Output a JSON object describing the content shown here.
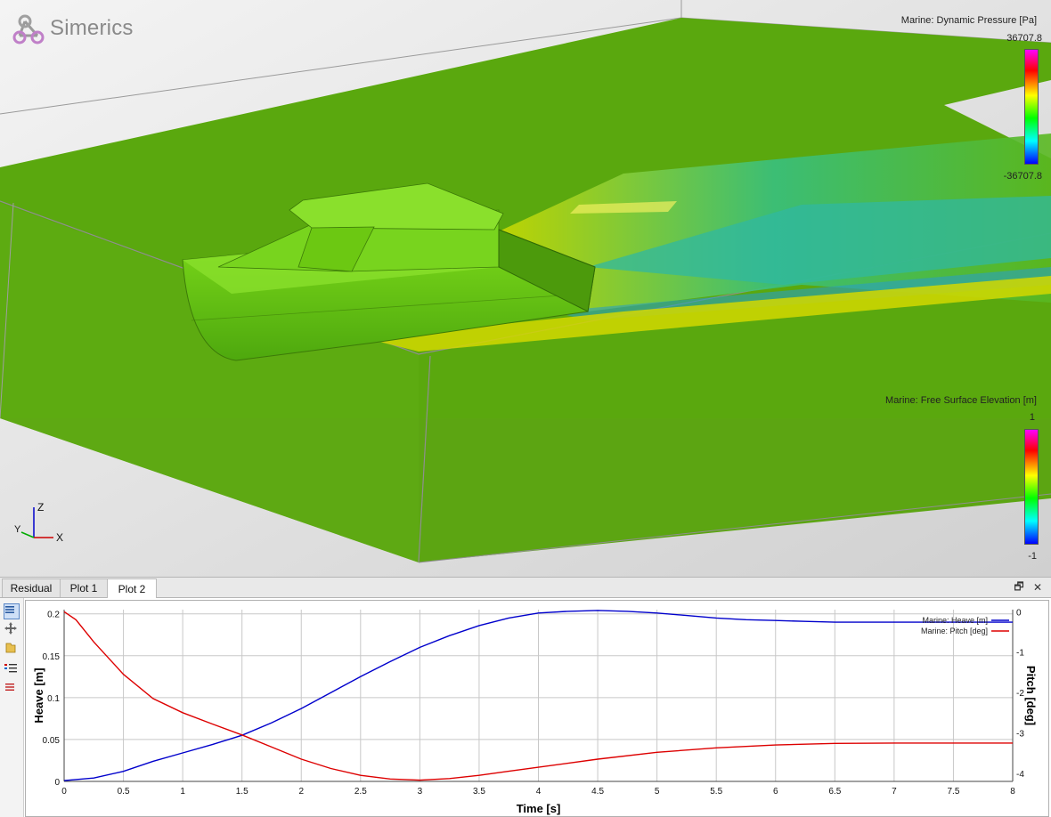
{
  "app": {
    "logo_text": "Simerics"
  },
  "viewport": {
    "legend_top": {
      "title": "Marine: Dynamic Pressure [Pa]",
      "max": "36707.8",
      "min": "-36707.8"
    },
    "legend_bottom": {
      "title": "Marine: Free Surface Elevation [m]",
      "max": "1",
      "min": "-1"
    },
    "triad": {
      "z": "Z",
      "y": "Y",
      "x": "X"
    }
  },
  "tabs": [
    {
      "label": "Residual",
      "active": false
    },
    {
      "label": "Plot 1",
      "active": false
    },
    {
      "label": "Plot 2",
      "active": true
    }
  ],
  "window_buttons": {
    "restore": "🗗",
    "close": "✕"
  },
  "toolbar_icons": [
    "legend-toggle-icon",
    "pan-icon",
    "folder-icon",
    "series-list-icon",
    "series-menu-icon"
  ],
  "chart_data": {
    "type": "line",
    "xlabel": "Time [s]",
    "ylabel": "Heave [m]",
    "y2label": "Pitch [deg]",
    "xlim": [
      0,
      8
    ],
    "ylim": [
      0,
      0.205
    ],
    "y2lim": [
      -4.2,
      0.05
    ],
    "xticks": [
      "0",
      "0.5",
      "1",
      "1.5",
      "2",
      "2.5",
      "3",
      "3.5",
      "4",
      "4.5",
      "5",
      "5.5",
      "6",
      "6.5",
      "7",
      "7.5",
      "8"
    ],
    "yticks": [
      "0",
      "0.05",
      "0.1",
      "0.15",
      "0.2"
    ],
    "y2ticks": [
      "0",
      "-1",
      "-2",
      "-3",
      "-4"
    ],
    "grid": true,
    "legend_position": "top-right",
    "series": [
      {
        "name": "Marine: Heave [m]",
        "color": "#0000cc",
        "axis": "left",
        "x": [
          0,
          0.25,
          0.5,
          0.75,
          1,
          1.25,
          1.5,
          1.75,
          2,
          2.25,
          2.5,
          2.75,
          3,
          3.25,
          3.5,
          3.75,
          4,
          4.25,
          4.5,
          4.75,
          5,
          5.25,
          5.5,
          5.75,
          6,
          6.25,
          6.5,
          6.75,
          7,
          7.5,
          8
        ],
        "values": [
          0.001,
          0.004,
          0.012,
          0.024,
          0.034,
          0.044,
          0.055,
          0.07,
          0.087,
          0.106,
          0.125,
          0.143,
          0.16,
          0.174,
          0.186,
          0.195,
          0.201,
          0.203,
          0.204,
          0.203,
          0.201,
          0.198,
          0.195,
          0.193,
          0.192,
          0.191,
          0.19,
          0.19,
          0.19,
          0.19,
          0.19
        ]
      },
      {
        "name": "Marine: Pitch [deg]",
        "color": "#dd0000",
        "axis": "right",
        "x": [
          0,
          0.1,
          0.25,
          0.5,
          0.75,
          1,
          1.25,
          1.5,
          1.75,
          2,
          2.25,
          2.5,
          2.75,
          3,
          3.25,
          3.5,
          3.75,
          4,
          4.5,
          5,
          5.5,
          6,
          6.5,
          7,
          7.5,
          8
        ],
        "values": [
          0,
          -0.2,
          -0.75,
          -1.55,
          -2.15,
          -2.5,
          -2.78,
          -3.05,
          -3.35,
          -3.65,
          -3.88,
          -4.05,
          -4.14,
          -4.17,
          -4.13,
          -4.05,
          -3.95,
          -3.85,
          -3.65,
          -3.48,
          -3.37,
          -3.3,
          -3.26,
          -3.25,
          -3.25,
          -3.25
        ]
      }
    ]
  }
}
